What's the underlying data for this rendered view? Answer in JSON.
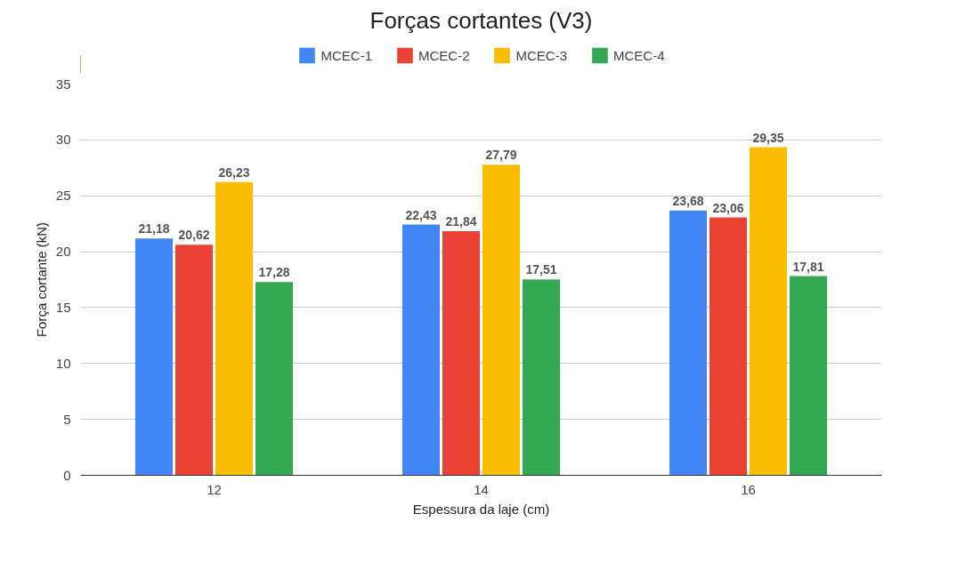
{
  "chart_data": {
    "type": "bar",
    "title": "Forças cortantes (V3)",
    "xlabel": "Espessura da laje (cm)",
    "ylabel": "Força cortante (kN)",
    "categories": [
      "12",
      "14",
      "16"
    ],
    "series": [
      {
        "name": "MCEC-1",
        "color": "#4285f4",
        "values": [
          21.18,
          22.43,
          23.68
        ],
        "value_labels": [
          "21,18",
          "22,43",
          "23,68"
        ]
      },
      {
        "name": "MCEC-2",
        "color": "#ea4335",
        "values": [
          20.62,
          21.84,
          23.06
        ],
        "value_labels": [
          "20,62",
          "21,84",
          "23,06"
        ]
      },
      {
        "name": "MCEC-3",
        "color": "#fbbc04",
        "values": [
          26.23,
          27.79,
          29.35
        ],
        "value_labels": [
          "26,23",
          "27,79",
          "29,35"
        ]
      },
      {
        "name": "MCEC-4",
        "color": "#34a853",
        "values": [
          17.28,
          17.51,
          17.81
        ],
        "value_labels": [
          "17,28",
          "17,51",
          "17,81"
        ]
      }
    ],
    "ylim": [
      0,
      35
    ],
    "yticks": [
      0,
      5,
      10,
      15,
      20,
      25,
      30,
      35
    ],
    "grid": "y",
    "legend": "top"
  }
}
